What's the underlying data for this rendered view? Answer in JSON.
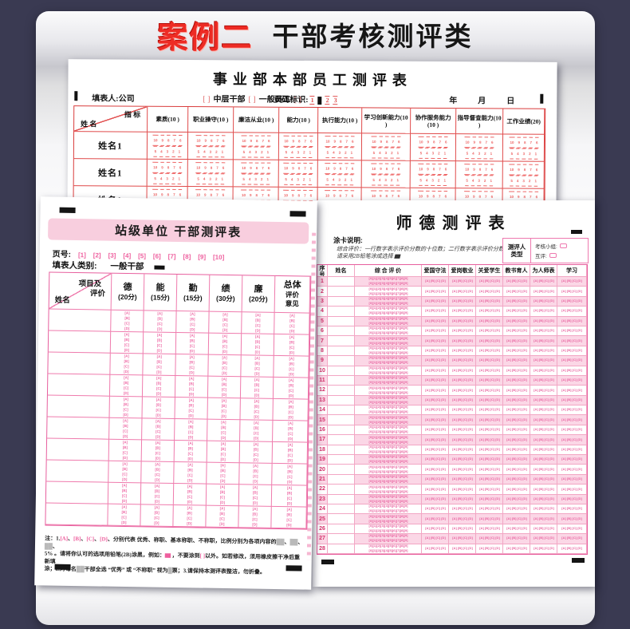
{
  "header": {
    "badge": "案例二",
    "title": "干部考核测评类"
  },
  "form_top": {
    "title": "事业部本部员工测评表",
    "filler_label": "填表人:公司",
    "bracket": "[ ]",
    "role_options": [
      "中层干部",
      "一般员工"
    ],
    "page_mark_label": "页码标识:",
    "page_marks": [
      "1",
      "■",
      "2",
      "3"
    ],
    "date_label": "年　　月　　日",
    "corner_top": "指 标",
    "corner_bottom": "姓 名",
    "columns": [
      "素质(10 )",
      "职业操守(10 )",
      "廉洁从业(10 )",
      "能力(10 )",
      "执行能力(10 )",
      "学习创新能力(10 )",
      "协作服务能力(10 )",
      "指导督查能力(10 )",
      "工作业绩(20)"
    ],
    "row_label": "姓名1",
    "row_count": 5,
    "bubbles_top": [
      "10",
      "9",
      "8",
      "7",
      "6"
    ],
    "bubbles_bottom": [
      "5",
      "4",
      "3",
      "2",
      "1"
    ]
  },
  "form_left": {
    "title": "站级单位 干部测评表",
    "page_label": "页号:",
    "page_bubbles": [
      "[1]",
      "[2]",
      "[3]",
      "[4]",
      "[5]",
      "[6]",
      "[7]",
      "[8]",
      "[9]",
      "[10]"
    ],
    "filler_type_label": "填表人类别:",
    "filler_type_value": "一般干部",
    "corner_top": "项目及",
    "corner_mid": "评价",
    "corner_bottom": "姓名",
    "columns": [
      [
        "德",
        "(20分)"
      ],
      [
        "能",
        "(15分)"
      ],
      [
        "勤",
        "(15分)"
      ],
      [
        "绩",
        "(30分)"
      ],
      [
        "廉",
        "(20分)"
      ],
      [
        "总体",
        "评价",
        "意见"
      ]
    ],
    "options": [
      "A",
      "B",
      "C",
      "D"
    ],
    "row_count": 10,
    "notes": [
      "注：1.[A]、[B]、[C]、[D]、分别代表 优秀、称职、基本称职、不称职，比例分别为各项内容的██、██、██、",
      "5% 。请将你认可的选项用铅笔(2B)涂黑，例如：▆ ，不要涂到[ ]以外。如若修改，须用橡皮擦干净后重新填",
      "涂；2.对每名██干部全选 “优秀” 或 “不称职” 视为█票；3.请保持本测评表整洁，勿折叠。"
    ]
  },
  "form_right": {
    "title": "师德测评表",
    "inst_title": "涂卡说明:",
    "inst_lines": [
      "综合评价：一行数字表示评价分数的十位数；二行数字表示评价分数的个位数。",
      "请采用2B铅笔涂成选择 ▆"
    ],
    "evaluator_label1": "测评人",
    "evaluator_label2": "类型",
    "evaluator_options": [
      "考核小组:",
      "互评:"
    ],
    "columns": [
      "序号",
      "姓名",
      "综 合 评 价",
      "爱国守法",
      "爱岗敬业",
      "关爱学生",
      "教书育人",
      "为人师表",
      "学习"
    ],
    "digits": [
      "0",
      "1",
      "2",
      "3",
      "4",
      "5",
      "6",
      "7",
      "8",
      "9"
    ],
    "options": [
      "A",
      "B",
      "C",
      "D"
    ],
    "row_count": 28
  },
  "colors": {
    "background": "#3a3a52",
    "badge_red": "#ed2b24",
    "omr_red": "#e04b4b",
    "omr_pink": "#e75f9e",
    "row_pink": "#fbd7e6",
    "banner_pink": "#f8cede"
  }
}
